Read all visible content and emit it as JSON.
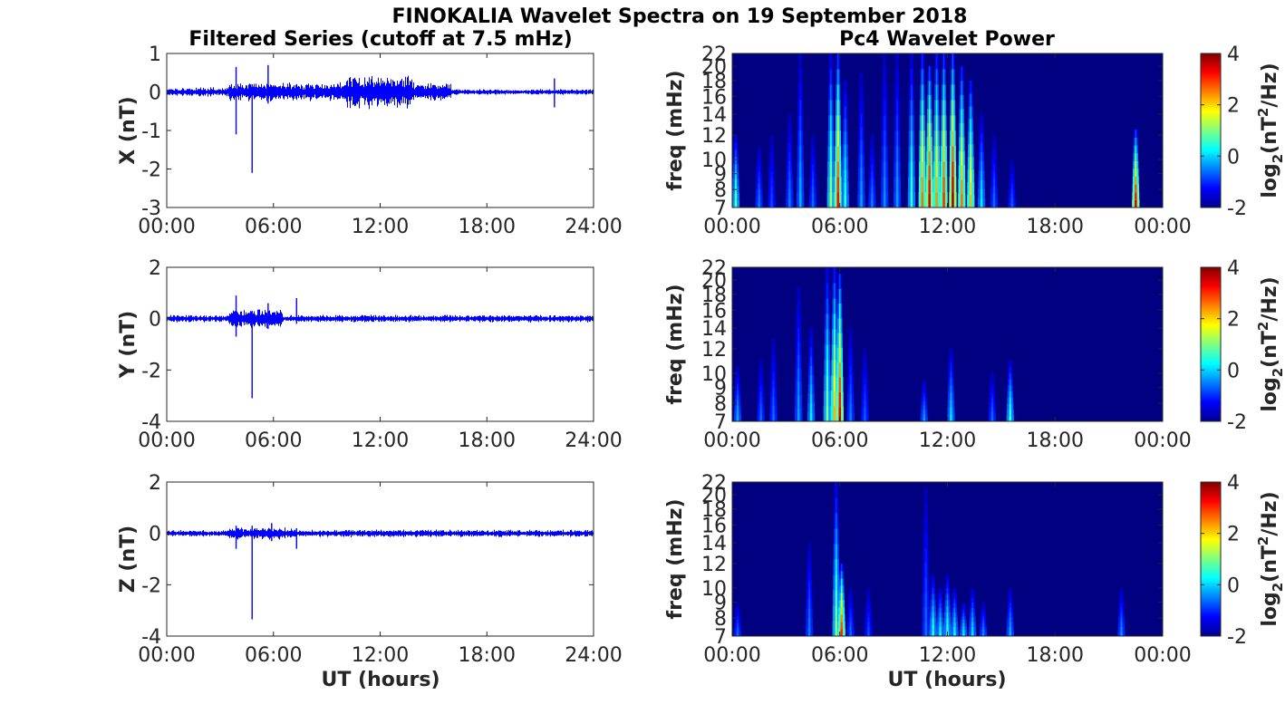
{
  "figure": {
    "title": "FINOKALIA Wavelet Spectra on 19 September 2018",
    "left_title": "Filtered Series (cutoff at 7.5 mHz)",
    "right_title": "Pc4 Wavelet Power",
    "xlabel": "UT (hours)",
    "spec_ylabel": "freq (mHz)",
    "cbar_label": "log2(nT2/Hz)"
  },
  "chart_data": [
    {
      "type": "line",
      "name": "X",
      "ylabel": "X (nT)",
      "x_ticks": [
        "00:00",
        "06:00",
        "12:00",
        "18:00",
        "24:00"
      ],
      "y_ticks": [
        "1",
        "0",
        "-1",
        "-2",
        "-3"
      ],
      "ylim": [
        -3,
        1
      ],
      "xlim_hours": [
        0,
        24
      ],
      "line_color": "#0000ff",
      "baseline_amplitude": [
        {
          "from_h": 0,
          "to_h": 3.5,
          "amp": 0.1
        },
        {
          "from_h": 3.5,
          "to_h": 10,
          "amp": 0.2
        },
        {
          "from_h": 10,
          "to_h": 13.8,
          "amp": 0.35
        },
        {
          "from_h": 13.8,
          "to_h": 16,
          "amp": 0.2
        },
        {
          "from_h": 16,
          "to_h": 24,
          "amp": 0.06
        }
      ],
      "spikes": [
        {
          "t_h": 3.9,
          "min": -1.1,
          "max": 0.65
        },
        {
          "t_h": 4.8,
          "min": -2.1,
          "max": 0.2
        },
        {
          "t_h": 5.7,
          "min": -0.3,
          "max": 0.7
        },
        {
          "t_h": 21.8,
          "min": -0.4,
          "max": 0.35
        }
      ]
    },
    {
      "type": "line",
      "name": "Y",
      "ylabel": "Y (nT)",
      "x_ticks": [
        "00:00",
        "06:00",
        "12:00",
        "18:00",
        "24:00"
      ],
      "y_ticks": [
        "2",
        "0",
        "-2",
        "-4"
      ],
      "ylim": [
        -4,
        2
      ],
      "xlim_hours": [
        0,
        24
      ],
      "line_color": "#0000ff",
      "baseline_amplitude": [
        {
          "from_h": 0,
          "to_h": 3.5,
          "amp": 0.12
        },
        {
          "from_h": 3.5,
          "to_h": 6.5,
          "amp": 0.3
        },
        {
          "from_h": 6.5,
          "to_h": 24,
          "amp": 0.12
        }
      ],
      "spikes": [
        {
          "t_h": 3.9,
          "min": -0.7,
          "max": 0.9
        },
        {
          "t_h": 4.8,
          "min": -3.1,
          "max": 0.3
        },
        {
          "t_h": 5.7,
          "min": -0.4,
          "max": 0.6
        },
        {
          "t_h": 7.3,
          "min": -0.2,
          "max": 0.8
        }
      ]
    },
    {
      "type": "line",
      "name": "Z",
      "ylabel": "Z (nT)",
      "x_ticks": [
        "00:00",
        "06:00",
        "12:00",
        "18:00",
        "24:00"
      ],
      "y_ticks": [
        "2",
        "0",
        "-2",
        "-4"
      ],
      "ylim": [
        -4,
        2
      ],
      "xlim_hours": [
        0,
        24
      ],
      "line_color": "#0000ff",
      "baseline_amplitude": [
        {
          "from_h": 0,
          "to_h": 3.5,
          "amp": 0.1
        },
        {
          "from_h": 3.5,
          "to_h": 7,
          "amp": 0.2
        },
        {
          "from_h": 7,
          "to_h": 24,
          "amp": 0.12
        }
      ],
      "spikes": [
        {
          "t_h": 3.9,
          "min": -0.6,
          "max": 0.3
        },
        {
          "t_h": 4.8,
          "min": -3.35,
          "max": 0.3
        },
        {
          "t_h": 5.9,
          "min": -0.3,
          "max": 0.4
        },
        {
          "t_h": 7.3,
          "min": -0.6,
          "max": 0.2
        }
      ]
    },
    {
      "type": "heatmap",
      "name": "X wavelet power",
      "ylabel": "freq (mHz)",
      "x_ticks": [
        "00:00",
        "06:00",
        "12:00",
        "18:00",
        "00:00"
      ],
      "y_ticks": [
        "22",
        "20",
        "18",
        "16",
        "14",
        "12",
        "10",
        "9",
        "8",
        "7"
      ],
      "ylim_mhz": [
        7,
        22
      ],
      "xlim_hours": [
        0,
        24
      ],
      "clim": [
        -2,
        4
      ],
      "cbar_ticks": [
        "4",
        "2",
        "0",
        "-2"
      ],
      "background_level": -2,
      "streaks": [
        {
          "t_h": 0.2,
          "top_mhz": 12,
          "peak": 0.8
        },
        {
          "t_h": 1.5,
          "top_mhz": 11,
          "peak": -0.5
        },
        {
          "t_h": 2.2,
          "top_mhz": 12,
          "peak": -0.8
        },
        {
          "t_h": 3.2,
          "top_mhz": 14,
          "peak": -0.5
        },
        {
          "t_h": 3.8,
          "top_mhz": 22,
          "peak": -0.2
        },
        {
          "t_h": 4.5,
          "top_mhz": 12,
          "peak": -0.6
        },
        {
          "t_h": 5.5,
          "top_mhz": 22,
          "peak": 1.2
        },
        {
          "t_h": 5.9,
          "top_mhz": 22,
          "peak": 3.2
        },
        {
          "t_h": 6.3,
          "top_mhz": 18,
          "peak": 0.5
        },
        {
          "t_h": 7.2,
          "top_mhz": 19,
          "peak": -0.3
        },
        {
          "t_h": 7.8,
          "top_mhz": 12,
          "peak": -0.5
        },
        {
          "t_h": 8.5,
          "top_mhz": 22,
          "peak": -0.4
        },
        {
          "t_h": 9.2,
          "top_mhz": 22,
          "peak": -0.3
        },
        {
          "t_h": 10.0,
          "top_mhz": 22,
          "peak": 0.6
        },
        {
          "t_h": 10.6,
          "top_mhz": 22,
          "peak": 2.6
        },
        {
          "t_h": 11.0,
          "top_mhz": 20,
          "peak": 3.5
        },
        {
          "t_h": 11.4,
          "top_mhz": 22,
          "peak": 2.4
        },
        {
          "t_h": 11.8,
          "top_mhz": 22,
          "peak": 3.0
        },
        {
          "t_h": 12.3,
          "top_mhz": 22,
          "peak": 3.8
        },
        {
          "t_h": 12.8,
          "top_mhz": 20,
          "peak": 2.6
        },
        {
          "t_h": 13.3,
          "top_mhz": 18,
          "peak": 2.2
        },
        {
          "t_h": 13.9,
          "top_mhz": 14,
          "peak": 0.2
        },
        {
          "t_h": 14.6,
          "top_mhz": 12,
          "peak": -0.6
        },
        {
          "t_h": 15.6,
          "top_mhz": 10,
          "peak": -0.7
        },
        {
          "t_h": 22.5,
          "top_mhz": 12.5,
          "peak": 3.4
        }
      ]
    },
    {
      "type": "heatmap",
      "name": "Y wavelet power",
      "ylabel": "freq (mHz)",
      "x_ticks": [
        "00:00",
        "06:00",
        "12:00",
        "18:00",
        "00:00"
      ],
      "y_ticks": [
        "22",
        "20",
        "18",
        "16",
        "14",
        "12",
        "10",
        "9",
        "8",
        "7"
      ],
      "ylim_mhz": [
        7,
        22
      ],
      "xlim_hours": [
        0,
        24
      ],
      "clim": [
        -2,
        4
      ],
      "cbar_ticks": [
        "4",
        "2",
        "0",
        "-2"
      ],
      "background_level": -2,
      "streaks": [
        {
          "t_h": 0.3,
          "top_mhz": 10.5,
          "peak": -0.2
        },
        {
          "t_h": 1.6,
          "top_mhz": 11,
          "peak": -0.6
        },
        {
          "t_h": 2.3,
          "top_mhz": 13,
          "peak": -0.6
        },
        {
          "t_h": 3.7,
          "top_mhz": 19,
          "peak": -0.3
        },
        {
          "t_h": 4.4,
          "top_mhz": 14,
          "peak": 0.2
        },
        {
          "t_h": 5.3,
          "top_mhz": 22,
          "peak": 1.0
        },
        {
          "t_h": 5.7,
          "top_mhz": 22,
          "peak": 2.2
        },
        {
          "t_h": 6.0,
          "top_mhz": 21,
          "peak": 3.4
        },
        {
          "t_h": 6.6,
          "top_mhz": 14,
          "peak": -0.5
        },
        {
          "t_h": 7.4,
          "top_mhz": 12,
          "peak": -0.7
        },
        {
          "t_h": 10.7,
          "top_mhz": 9.5,
          "peak": -0.3
        },
        {
          "t_h": 12.2,
          "top_mhz": 12,
          "peak": 0.1
        },
        {
          "t_h": 14.5,
          "top_mhz": 10,
          "peak": -0.6
        },
        {
          "t_h": 15.5,
          "top_mhz": 11,
          "peak": 0.6
        }
      ]
    },
    {
      "type": "heatmap",
      "name": "Z wavelet power",
      "ylabel": "freq (mHz)",
      "x_ticks": [
        "00:00",
        "06:00",
        "12:00",
        "18:00",
        "00:00"
      ],
      "y_ticks": [
        "22",
        "20",
        "18",
        "16",
        "14",
        "12",
        "10",
        "9",
        "8",
        "7"
      ],
      "ylim_mhz": [
        7,
        22
      ],
      "xlim_hours": [
        0,
        24
      ],
      "clim": [
        -2,
        4
      ],
      "cbar_ticks": [
        "4",
        "2",
        "0",
        "-2"
      ],
      "background_level": -2,
      "streaks": [
        {
          "t_h": 0.3,
          "top_mhz": 9,
          "peak": -0.6
        },
        {
          "t_h": 4.3,
          "top_mhz": 14,
          "peak": -0.5
        },
        {
          "t_h": 5.8,
          "top_mhz": 22,
          "peak": 1.0
        },
        {
          "t_h": 6.1,
          "top_mhz": 12,
          "peak": 3.0
        },
        {
          "t_h": 6.6,
          "top_mhz": 10,
          "peak": -0.6
        },
        {
          "t_h": 7.6,
          "top_mhz": 10,
          "peak": -0.8
        },
        {
          "t_h": 10.8,
          "top_mhz": 21,
          "peak": -0.6
        },
        {
          "t_h": 11.2,
          "top_mhz": 11,
          "peak": 0.5
        },
        {
          "t_h": 11.6,
          "top_mhz": 10,
          "peak": 0.3
        },
        {
          "t_h": 12.0,
          "top_mhz": 11,
          "peak": 0.6
        },
        {
          "t_h": 12.4,
          "top_mhz": 10,
          "peak": 0.3
        },
        {
          "t_h": 12.9,
          "top_mhz": 9,
          "peak": 0.2
        },
        {
          "t_h": 13.4,
          "top_mhz": 10,
          "peak": 0.1
        },
        {
          "t_h": 14.0,
          "top_mhz": 9,
          "peak": -0.4
        },
        {
          "t_h": 15.5,
          "top_mhz": 10,
          "peak": -0.2
        },
        {
          "t_h": 21.7,
          "top_mhz": 10,
          "peak": -0.4
        }
      ]
    }
  ]
}
